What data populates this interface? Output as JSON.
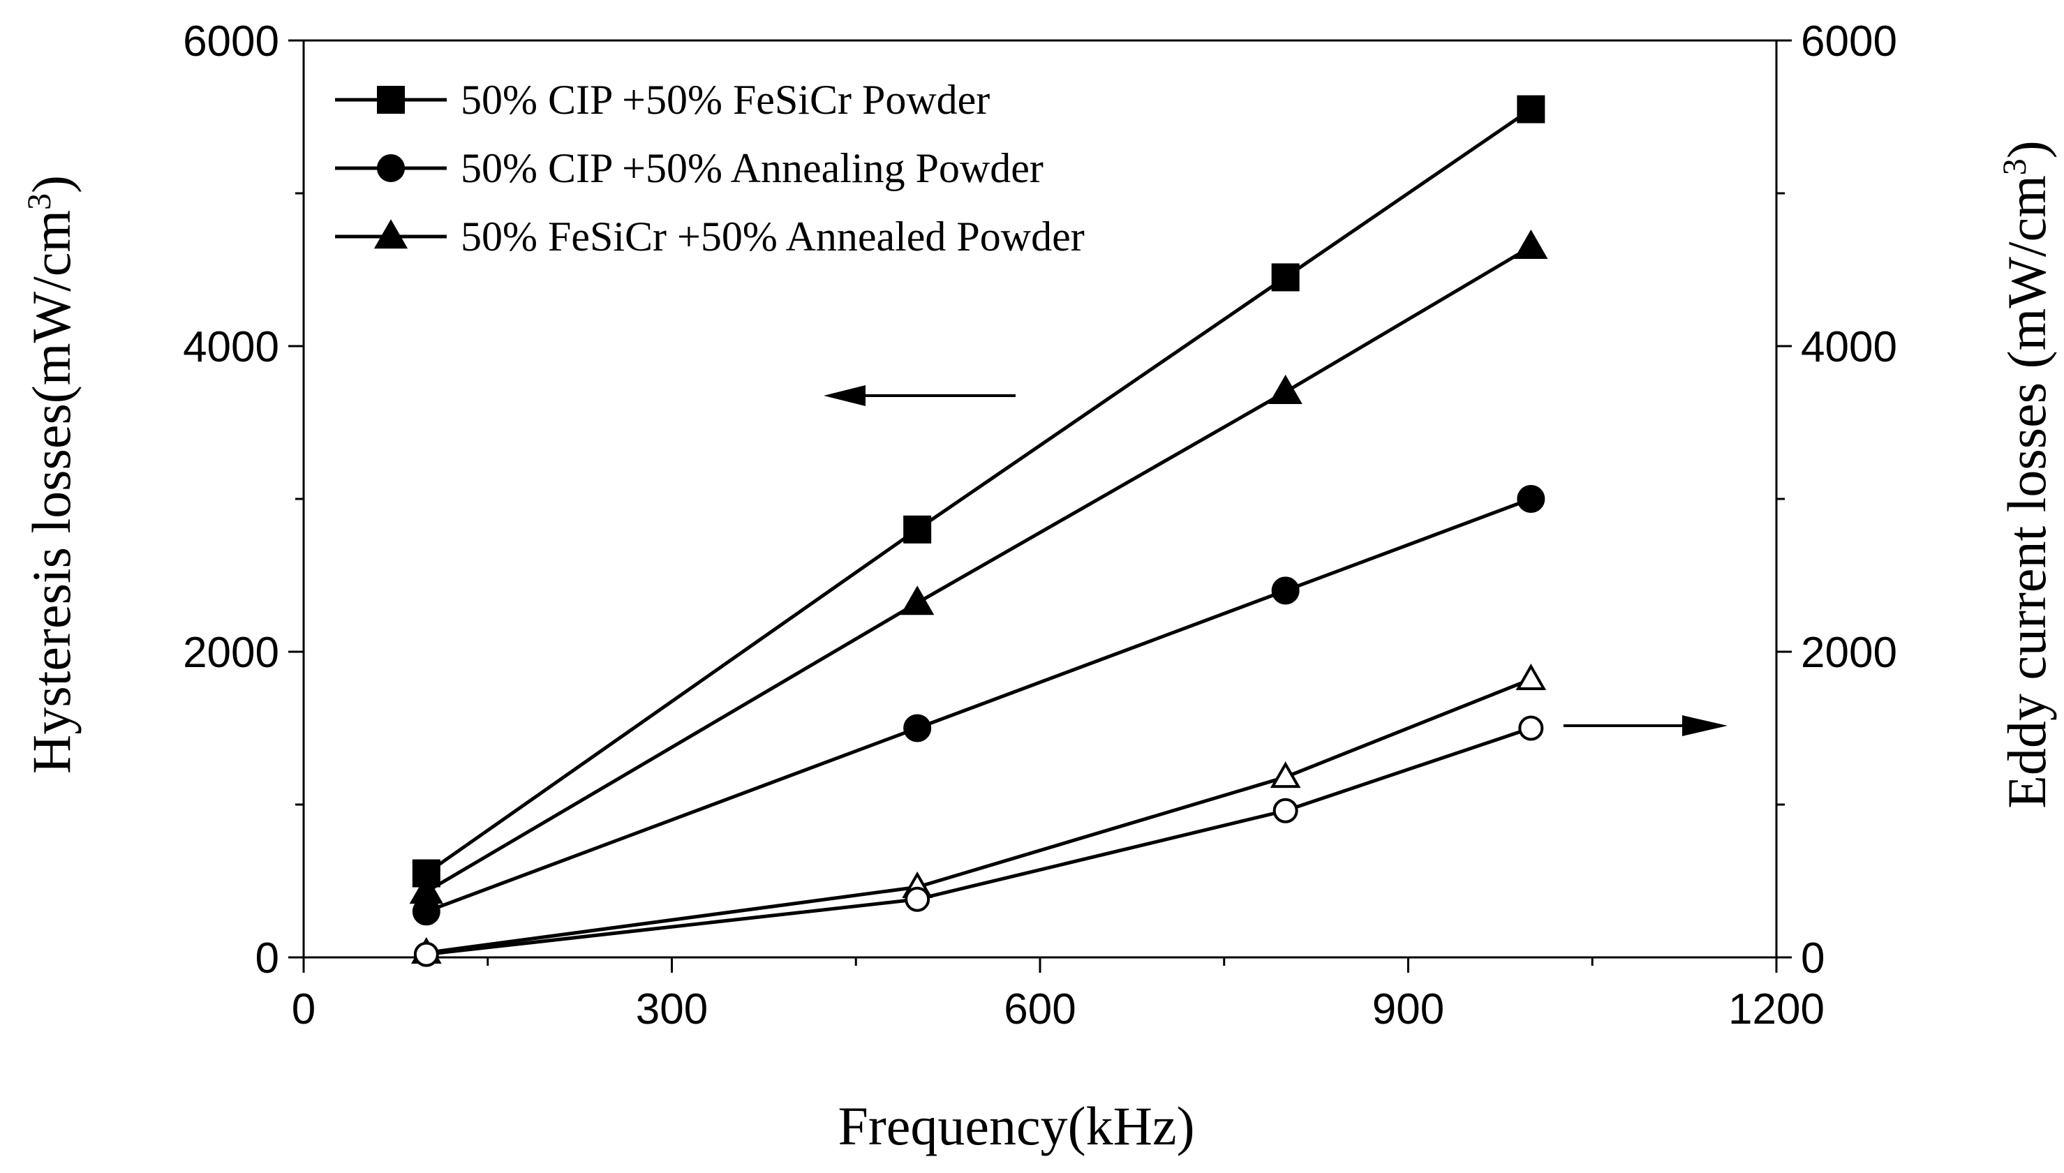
{
  "chart_data": {
    "type": "line",
    "xlabel": "Frequency(kHz)",
    "ylabel_left": "Hysteresis losses(mW/cm",
    "ylabel_right": "Eddy current losses (mW/cm",
    "ylabel_superscript": "3",
    "ylabel_close": ")",
    "xlim": [
      0,
      1200
    ],
    "ylim_left": [
      0,
      6000
    ],
    "ylim_right": [
      0,
      6000
    ],
    "x_ticks": [
      0,
      300,
      600,
      900,
      1200
    ],
    "y_ticks_left": [
      0,
      2000,
      4000,
      6000
    ],
    "y_ticks_right": [
      0,
      2000,
      4000,
      6000
    ],
    "legend_location": "top-left",
    "series": [
      {
        "name": "50% CIP +50% FeSiCr Powder",
        "axis": "left",
        "marker": "square",
        "filled": true,
        "in_legend": true,
        "x": [
          100,
          500,
          800,
          1000
        ],
        "values": [
          550,
          2800,
          4450,
          5550
        ]
      },
      {
        "name": "50% CIP +50% Annealing Powder",
        "axis": "left",
        "marker": "circle",
        "filled": true,
        "in_legend": true,
        "x": [
          100,
          500,
          800,
          1000
        ],
        "values": [
          300,
          1500,
          2400,
          3000
        ]
      },
      {
        "name": "50% FeSiCr +50% Annealed Powder",
        "axis": "left",
        "marker": "triangle",
        "filled": true,
        "in_legend": true,
        "x": [
          100,
          500,
          800,
          1000
        ],
        "values": [
          430,
          2320,
          3700,
          4650
        ]
      },
      {
        "name": "Eddy current losses (open triangle)",
        "axis": "right",
        "marker": "triangle",
        "filled": false,
        "in_legend": false,
        "x": [
          100,
          500,
          800,
          1000
        ],
        "values": [
          30,
          460,
          1180,
          1820
        ]
      },
      {
        "name": "Eddy current losses (open circle)",
        "axis": "right",
        "marker": "circle",
        "filled": false,
        "in_legend": false,
        "x": [
          100,
          500,
          800,
          1000
        ],
        "values": [
          20,
          380,
          960,
          1500
        ]
      }
    ],
    "annotations": [
      {
        "type": "arrow",
        "direction": "left",
        "meaning": "series read on left axis"
      },
      {
        "type": "arrow",
        "direction": "right",
        "meaning": "series read on right axis"
      }
    ]
  }
}
